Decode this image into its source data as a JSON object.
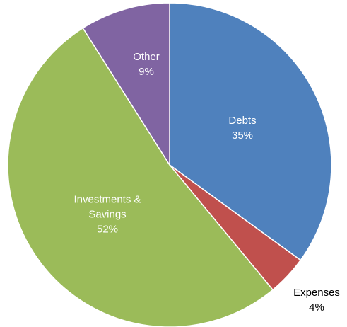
{
  "chart_data": {
    "type": "pie",
    "categories": [
      "Debts",
      "Expenses",
      "Investments & Savings",
      "Other"
    ],
    "values": [
      35,
      4,
      52,
      9
    ],
    "value_labels": [
      "35%",
      "4%",
      "52%",
      "9%"
    ],
    "colors": [
      "#4f81bd",
      "#c0504d",
      "#9bbb59",
      "#8064a2"
    ]
  }
}
